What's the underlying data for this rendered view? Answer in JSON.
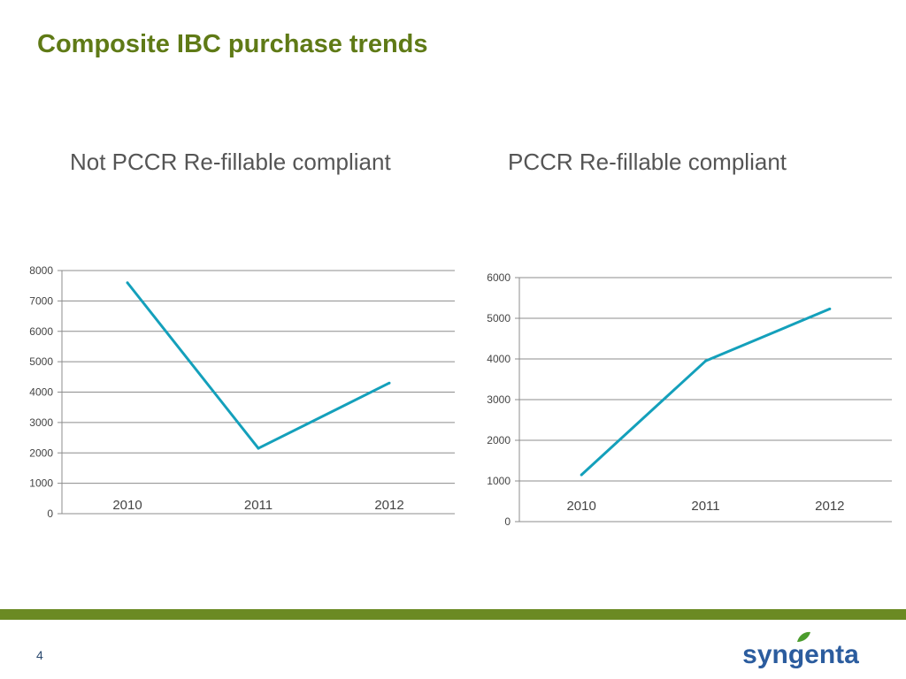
{
  "slide": {
    "title": "Composite IBC purchase trends",
    "page_number": "4"
  },
  "logo": {
    "text": "syngenta",
    "text_color": "#2b5c9e",
    "leaf_color": "#4b9c2d"
  },
  "colors": {
    "title": "#5f7a16",
    "line": "#14a0bb",
    "grid": "#8c8c8c",
    "footer_bar": "#6b8a23"
  },
  "chart_data": [
    {
      "type": "line",
      "title": "Not PCCR Re-fillable compliant",
      "categories": [
        "2010",
        "2011",
        "2012"
      ],
      "values": [
        7600,
        2150,
        4300
      ],
      "ylim": [
        0,
        8000
      ],
      "yticks": [
        0,
        1000,
        2000,
        3000,
        4000,
        5000,
        6000,
        7000,
        8000
      ],
      "grid": true,
      "legend": "none",
      "xlabel": "",
      "ylabel": ""
    },
    {
      "type": "line",
      "title": "PCCR Re-fillable compliant",
      "categories": [
        "2010",
        "2011",
        "2012"
      ],
      "values": [
        1150,
        3950,
        5230
      ],
      "ylim": [
        0,
        6000
      ],
      "yticks": [
        0,
        1000,
        2000,
        3000,
        4000,
        5000,
        6000
      ],
      "grid": true,
      "legend": "none",
      "xlabel": "",
      "ylabel": ""
    }
  ]
}
